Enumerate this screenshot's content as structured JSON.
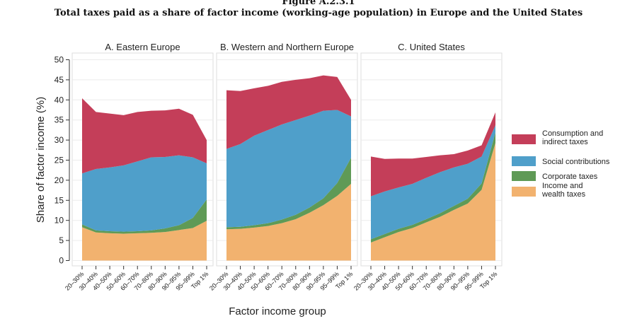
{
  "figure": {
    "label": "Figure A.2.3.1",
    "title": "Total taxes paid as a share of factor income (working-age population) in Europe and the United States"
  },
  "colors": {
    "income": "#f2b26f",
    "corporate": "#5f9a56",
    "social": "#4f9fca",
    "consumption": "#c43e59"
  },
  "chart_data": {
    "type": "area",
    "stacked": true,
    "ylabel": "Share of factor income (%)",
    "xlabel": "Factor income group",
    "ylim": [
      0,
      50
    ],
    "yticks": [
      0,
      5,
      10,
      15,
      20,
      25,
      30,
      35,
      40,
      45,
      50
    ],
    "categories": [
      "20–30%",
      "30–40%",
      "40–50%",
      "50–60%",
      "60–70%",
      "70–80%",
      "80–90%",
      "90–95%",
      "95–99%",
      "Top 1%"
    ],
    "legend": {
      "position": "right",
      "entries": [
        {
          "key": "consumption",
          "label_line1": "Consumption and",
          "label_line2": "indirect taxes"
        },
        {
          "key": "social",
          "label_line1": "Social contributions",
          "label_line2": ""
        },
        {
          "key": "corporate",
          "label_line1": "Corporate taxes",
          "label_line2": ""
        },
        {
          "key": "income",
          "label_line1": "Income and",
          "label_line2": "wealth taxes"
        }
      ]
    },
    "panels": [
      {
        "title": "A. Eastern Europe",
        "series": [
          {
            "key": "income",
            "name": "Income and wealth taxes",
            "values": [
              8.3,
              7.0,
              6.8,
              6.7,
              6.8,
              6.9,
              7.1,
              7.6,
              8.1,
              9.9
            ]
          },
          {
            "key": "corporate",
            "name": "Corporate taxes",
            "values": [
              0.7,
              0.5,
              0.5,
              0.5,
              0.5,
              0.6,
              0.9,
              1.2,
              2.5,
              5.3
            ]
          },
          {
            "key": "social",
            "name": "Social contributions",
            "values": [
              12.7,
              15.3,
              15.9,
              16.5,
              17.4,
              18.2,
              17.8,
              17.4,
              15.1,
              9.0
            ]
          },
          {
            "key": "consumption",
            "name": "Consumption and indirect taxes",
            "values": [
              18.7,
              14.2,
              13.4,
              12.5,
              12.3,
              11.6,
              11.6,
              11.6,
              10.6,
              5.8
            ]
          }
        ]
      },
      {
        "title": "B. Western and Northern Europe",
        "series": [
          {
            "key": "income",
            "name": "Income and wealth taxes",
            "values": [
              7.8,
              7.9,
              8.2,
              8.6,
              9.3,
              10.3,
              11.9,
              13.8,
              16.1,
              19.1
            ]
          },
          {
            "key": "corporate",
            "name": "Corporate taxes",
            "values": [
              0.5,
              0.5,
              0.6,
              0.7,
              0.9,
              1.1,
              1.3,
              1.7,
              3.2,
              6.5
            ]
          },
          {
            "key": "social",
            "name": "Social contributions",
            "values": [
              19.5,
              20.6,
              22.3,
              23.2,
              23.7,
              23.6,
              22.9,
              21.8,
              18.2,
              10.3
            ]
          },
          {
            "key": "consumption",
            "name": "Consumption and indirect taxes",
            "values": [
              14.6,
              13.2,
              11.8,
              11.0,
              10.6,
              10.0,
              9.3,
              8.8,
              8.2,
              4.1
            ]
          }
        ]
      },
      {
        "title": "C. United States",
        "series": [
          {
            "key": "income",
            "name": "Income and wealth taxes",
            "values": [
              4.5,
              5.8,
              7.1,
              8.1,
              9.5,
              10.9,
              12.6,
              14.2,
              17.6,
              29.3
            ]
          },
          {
            "key": "corporate",
            "name": "Corporate taxes",
            "values": [
              0.8,
              0.8,
              0.8,
              0.8,
              0.8,
              0.9,
              1.0,
              1.2,
              1.6,
              2.6
            ]
          },
          {
            "key": "social",
            "name": "Social contributions",
            "values": [
              10.7,
              10.6,
              10.3,
              10.2,
              10.3,
              10.2,
              9.6,
              8.7,
              6.7,
              1.8
            ]
          },
          {
            "key": "consumption",
            "name": "Consumption and indirect taxes",
            "values": [
              9.9,
              8.1,
              7.2,
              6.3,
              5.2,
              4.2,
              3.3,
              3.3,
              2.8,
              3.2
            ]
          }
        ]
      }
    ]
  }
}
